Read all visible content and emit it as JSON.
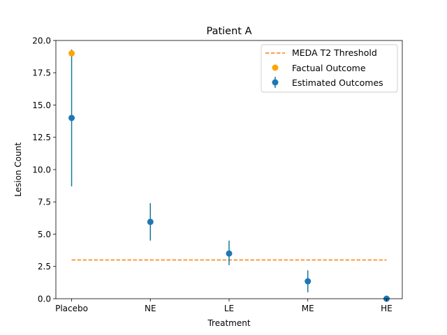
{
  "chart_data": {
    "type": "scatter",
    "title": "Patient A",
    "xlabel": "Treatment",
    "ylabel": "Lesion Count",
    "categories": [
      "Placebo",
      "NE",
      "LE",
      "ME",
      "HE"
    ],
    "ylim": [
      0,
      20
    ],
    "yticks": [
      "0.0",
      "2.5",
      "5.0",
      "7.5",
      "10.0",
      "12.5",
      "15.0",
      "17.5",
      "20.0"
    ],
    "grid": false,
    "legend_position": "top-right",
    "threshold": {
      "name": "MEDA T2 Threshold",
      "value": 3.0,
      "color": "#ff7f0e"
    },
    "series": [
      {
        "name": "Estimated Outcomes",
        "color": "#1f77b4",
        "errorbar_color": "#137a9a",
        "values": [
          14.0,
          5.95,
          3.5,
          1.35,
          0.0
        ],
        "lower": [
          8.7,
          4.5,
          2.6,
          0.5,
          0.0
        ],
        "upper": [
          19.3,
          7.4,
          4.5,
          2.2,
          0.1
        ]
      },
      {
        "name": "Factual Outcome",
        "color": "#ffa500",
        "points": [
          {
            "category": "Placebo",
            "value": 19.0
          }
        ]
      }
    ]
  }
}
